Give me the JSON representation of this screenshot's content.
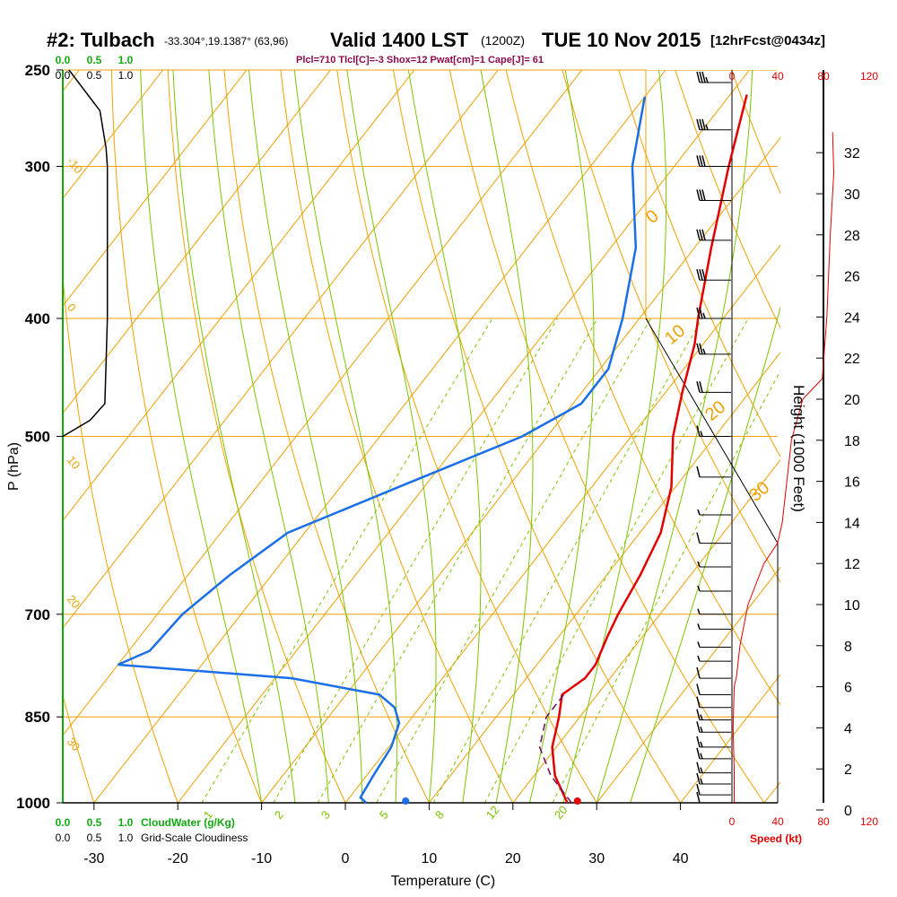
{
  "header": {
    "station": "#2: Tulbach",
    "coords": "-33.304°,19.1387° (63,96)",
    "valid": "Valid 1400 LST",
    "zulu": "(1200Z)",
    "date": "TUE 10 Nov 2015",
    "fcst": "[12hrFcst@0434z]",
    "indices": "Plcl=710 Tlcl[C]=-3 Shox=12 Pwat[cm]=1 Cape[J]= 61"
  },
  "colors": {
    "isotherm": "#f0a000",
    "dry_adiabat": "#f0a000",
    "moist_adiabat": "#7ac400",
    "mixing_ratio": "#7ac400",
    "temperature": "#e00000",
    "dewpoint": "#1a6ee8",
    "parcel": "#6a0a5a",
    "cloud": "#000000",
    "wind_speed": "#e00000",
    "indices_text": "#8b0a4e",
    "green_label": "#11aa11"
  },
  "chart_data": {
    "type": "line",
    "title": "#2: Tulbach",
    "xlabel": "Temperature (C)",
    "ylabel": "P (hPa)",
    "x_ticks": [
      -30,
      -20,
      -10,
      0,
      10,
      20,
      30,
      40
    ],
    "y_ticks": [
      250,
      300,
      400,
      500,
      700,
      850,
      1000
    ],
    "height_label": "Height (1000 Feet)",
    "height_ticks": [
      0,
      2,
      4,
      6,
      8,
      10,
      12,
      14,
      16,
      18,
      20,
      22,
      24,
      26,
      28,
      30,
      32
    ],
    "speed_label": "Speed (kt)",
    "speed_ticks": [
      0,
      40,
      80,
      120
    ],
    "cloud_ticks": [
      "0.0",
      "0.5",
      "1.0"
    ],
    "cloudwater_label": "CloudWater (g/Kg)",
    "cloudiness_label": "Grid-Scale Cloudiness",
    "mixing_ratio_labels": [
      "1",
      "2",
      "3",
      "5",
      "8",
      "12",
      "20"
    ],
    "dry_adiabat_labels": [
      "-10",
      "0",
      "10",
      "20",
      "30"
    ],
    "moist_labels": [
      "0",
      "10",
      "20",
      "30"
    ],
    "series": [
      {
        "key": "temperature",
        "points": [
          {
            "p": 1000,
            "t": 26.5
          },
          {
            "p": 950,
            "t": 22.5
          },
          {
            "p": 900,
            "t": 19.5
          },
          {
            "p": 850,
            "t": 17.5
          },
          {
            "p": 815,
            "t": 15.8
          },
          {
            "p": 790,
            "t": 17.0
          },
          {
            "p": 770,
            "t": 17.0
          },
          {
            "p": 730,
            "t": 15.8
          },
          {
            "p": 700,
            "t": 15.0
          },
          {
            "p": 650,
            "t": 14.0
          },
          {
            "p": 600,
            "t": 12.5
          },
          {
            "p": 550,
            "t": 9.5
          },
          {
            "p": 500,
            "t": 5.0
          },
          {
            "p": 460,
            "t": 2.0
          },
          {
            "p": 420,
            "t": -1.0
          },
          {
            "p": 400,
            "t": -3.0
          },
          {
            "p": 350,
            "t": -8.0
          },
          {
            "p": 300,
            "t": -13.5
          },
          {
            "p": 262,
            "t": -18.0
          }
        ]
      },
      {
        "key": "dewpoint",
        "points": [
          {
            "p": 1000,
            "t": 2.5
          },
          {
            "p": 990,
            "t": 1.3
          },
          {
            "p": 950,
            "t": 0.8
          },
          {
            "p": 900,
            "t": 0.3
          },
          {
            "p": 860,
            "t": -1.0
          },
          {
            "p": 835,
            "t": -3.0
          },
          {
            "p": 815,
            "t": -6.0
          },
          {
            "p": 790,
            "t": -18.0
          },
          {
            "p": 770,
            "t": -40.0
          },
          {
            "p": 750,
            "t": -37.5
          },
          {
            "p": 700,
            "t": -37.0
          },
          {
            "p": 650,
            "t": -35.0
          },
          {
            "p": 600,
            "t": -32.0
          },
          {
            "p": 550,
            "t": -23.0
          },
          {
            "p": 500,
            "t": -13.0
          },
          {
            "p": 470,
            "t": -9.0
          },
          {
            "p": 440,
            "t": -9.0
          },
          {
            "p": 400,
            "t": -12.0
          },
          {
            "p": 350,
            "t": -17.0
          },
          {
            "p": 300,
            "t": -25.0
          },
          {
            "p": 263,
            "t": -30.0
          }
        ]
      },
      {
        "key": "parcel",
        "points": [
          {
            "p": 1000,
            "t": 27.0
          },
          {
            "p": 950,
            "t": 22.0
          },
          {
            "p": 900,
            "t": 18.0
          },
          {
            "p": 850,
            "t": 16.0
          },
          {
            "p": 815,
            "t": 16.0
          }
        ]
      }
    ],
    "surface_temperature": 27.7,
    "surface_dewpoint": 7.2,
    "height_profile": [
      {
        "h": 0.3,
        "v": 2
      },
      {
        "h": 2,
        "v": 2
      },
      {
        "h": 4,
        "v": 1
      },
      {
        "h": 6,
        "v": 2
      },
      {
        "h": 6.5,
        "v": 4
      },
      {
        "h": 8,
        "v": 7
      },
      {
        "h": 10,
        "v": 14
      },
      {
        "h": 12,
        "v": 28
      },
      {
        "h": 13,
        "v": 40
      },
      {
        "h": 13.5,
        "v": 42
      },
      {
        "h": 14,
        "v": 44
      },
      {
        "h": 16,
        "v": 48
      },
      {
        "h": 18,
        "v": 52
      },
      {
        "h": 20,
        "v": 62
      },
      {
        "h": 21,
        "v": 79
      },
      {
        "h": 24,
        "v": 83
      },
      {
        "h": 28,
        "v": 86
      },
      {
        "h": 31,
        "v": 89
      },
      {
        "h": 33,
        "v": 88
      }
    ],
    "cloud_profile": [
      {
        "p": 250,
        "c": 0.05
      },
      {
        "p": 270,
        "c": 0.3
      },
      {
        "p": 290,
        "c": 0.35
      },
      {
        "p": 300,
        "c": 0.36
      },
      {
        "p": 400,
        "c": 0.36
      },
      {
        "p": 470,
        "c": 0.34
      },
      {
        "p": 485,
        "c": 0.22
      },
      {
        "p": 500,
        "c": 0.0
      }
    ],
    "wind_barbs": [
      {
        "p": 256,
        "kt": 35
      },
      {
        "p": 280,
        "kt": 35
      },
      {
        "p": 300,
        "kt": 30
      },
      {
        "p": 320,
        "kt": 30
      },
      {
        "p": 345,
        "kt": 30
      },
      {
        "p": 372,
        "kt": 30
      },
      {
        "p": 400,
        "kt": 25
      },
      {
        "p": 428,
        "kt": 25
      },
      {
        "p": 460,
        "kt": 20
      },
      {
        "p": 500,
        "kt": 15
      },
      {
        "p": 540,
        "kt": 10
      },
      {
        "p": 580,
        "kt": 5
      },
      {
        "p": 612,
        "kt": 10
      },
      {
        "p": 640,
        "kt": 5
      },
      {
        "p": 670,
        "kt": 5
      },
      {
        "p": 700,
        "kt": 5
      },
      {
        "p": 720,
        "kt": 5
      },
      {
        "p": 745,
        "kt": 5
      },
      {
        "p": 765,
        "kt": 5
      },
      {
        "p": 790,
        "kt": 10
      },
      {
        "p": 815,
        "kt": 10
      },
      {
        "p": 835,
        "kt": 10
      },
      {
        "p": 855,
        "kt": 15
      },
      {
        "p": 875,
        "kt": 15
      },
      {
        "p": 900,
        "kt": 15
      },
      {
        "p": 920,
        "kt": 15
      },
      {
        "p": 945,
        "kt": 15
      },
      {
        "p": 965,
        "kt": 15
      },
      {
        "p": 985,
        "kt": 10
      },
      {
        "p": 1000,
        "kt": 10
      }
    ]
  }
}
